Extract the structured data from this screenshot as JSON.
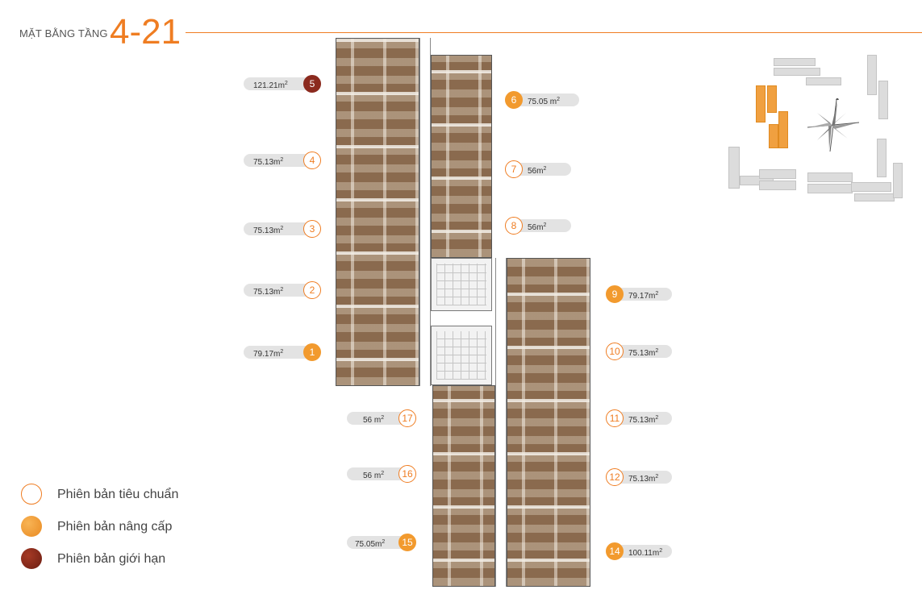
{
  "header": {
    "label": "MẶT BẰNG TẦNG",
    "floors": "4-21"
  },
  "colors": {
    "accent": "#ef7d22",
    "upgrade": "#f29a2e",
    "limited": "#8b2a1e",
    "pill": "#e3e3e3"
  },
  "units": [
    {
      "num": "5",
      "area": "121.21m",
      "tier": "limited"
    },
    {
      "num": "6",
      "area": "75.05 m",
      "tier": "upgrade"
    },
    {
      "num": "4",
      "area": "75.13m",
      "tier": "standard"
    },
    {
      "num": "7",
      "area": "56m",
      "tier": "standard"
    },
    {
      "num": "3",
      "area": "75.13m",
      "tier": "standard"
    },
    {
      "num": "8",
      "area": "56m",
      "tier": "standard"
    },
    {
      "num": "2",
      "area": "75.13m",
      "tier": "standard"
    },
    {
      "num": "9",
      "area": "79.17m",
      "tier": "upgrade"
    },
    {
      "num": "1",
      "area": "79.17m",
      "tier": "upgrade"
    },
    {
      "num": "10",
      "area": "75.13m",
      "tier": "standard"
    },
    {
      "num": "17",
      "area": "56 m",
      "tier": "standard"
    },
    {
      "num": "11",
      "area": "75.13m",
      "tier": "standard"
    },
    {
      "num": "16",
      "area": "56 m",
      "tier": "standard"
    },
    {
      "num": "12",
      "area": "75.13m",
      "tier": "standard"
    },
    {
      "num": "15",
      "area": "75.05m",
      "tier": "upgrade"
    },
    {
      "num": "14",
      "area": "100.11m",
      "tier": "upgrade"
    }
  ],
  "area_unit_sup": "2",
  "legend": [
    {
      "label": "Phiên bản tiêu chuẩn",
      "tier": "standard"
    },
    {
      "label": "Phiên bản nâng cấp",
      "tier": "upgrade"
    },
    {
      "label": "Phiên bản giới hạn",
      "tier": "limited"
    }
  ],
  "sitemap": {
    "compass_icon": "compass-rose-icon",
    "highlighted_building": "current-tower"
  }
}
